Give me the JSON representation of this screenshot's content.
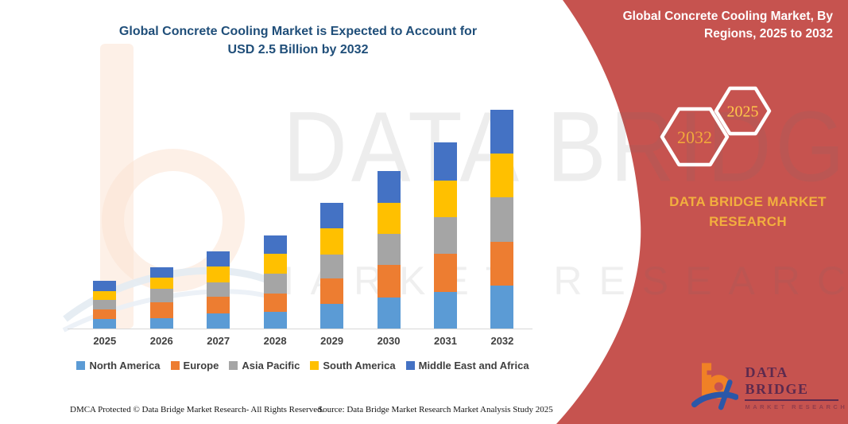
{
  "main_title": {
    "line1": "Global Concrete Cooling Market is Expected to Account for",
    "line2": "USD 2.5 Billion by 2032"
  },
  "panel": {
    "heading": "Global Concrete Cooling Market, By Regions, 2025 to 2032",
    "hex_back_year": "2032",
    "hex_front_year": "2025",
    "brand_line1": "DATA BRIDGE MARKET",
    "brand_line2": "RESEARCH",
    "background_color": "#C6534F",
    "accent_gold": "#F2AF3E"
  },
  "watermark": {
    "line1": "DATA BRIDGE",
    "line2": "MARKET RESEARCH"
  },
  "logo": {
    "name": "DATA BRIDGE",
    "subtitle": "MARKET RESEARCH"
  },
  "footer": {
    "dmca": "DMCA Protected © Data Bridge Market Research-  All Rights Reserved.",
    "source": "Source: Data Bridge Market Research  Market Analysis Study 2025"
  },
  "chart_data": {
    "type": "bar",
    "stacked": true,
    "title": "Global Concrete Cooling Market is Expected to Account for USD 2.5 Billion by 2032",
    "unit": "USD Billion",
    "categories": [
      "2025",
      "2026",
      "2027",
      "2028",
      "2029",
      "2030",
      "2031",
      "2032"
    ],
    "series": [
      {
        "name": "North America",
        "color": "#5B9BD5",
        "values": [
          0.11,
          0.12,
          0.17,
          0.19,
          0.28,
          0.35,
          0.42,
          0.49
        ]
      },
      {
        "name": "Europe",
        "color": "#ED7D31",
        "values": [
          0.11,
          0.18,
          0.19,
          0.21,
          0.29,
          0.37,
          0.44,
          0.5
        ]
      },
      {
        "name": "Asia Pacific",
        "color": "#A5A5A5",
        "values": [
          0.11,
          0.15,
          0.16,
          0.23,
          0.27,
          0.35,
          0.42,
          0.51
        ]
      },
      {
        "name": "South America",
        "color": "#FFC000",
        "values": [
          0.1,
          0.13,
          0.18,
          0.23,
          0.3,
          0.35,
          0.42,
          0.5
        ]
      },
      {
        "name": "Middle East and Africa",
        "color": "#4472C4",
        "values": [
          0.12,
          0.12,
          0.17,
          0.21,
          0.29,
          0.36,
          0.44,
          0.5
        ]
      }
    ],
    "totals_by_year": [
      0.55,
      0.7,
      0.87,
      1.07,
      1.43,
      1.78,
      2.14,
      2.5
    ],
    "xlabel": "",
    "ylabel": "",
    "y_axis_visible": false,
    "grid": false,
    "legend_position": "bottom"
  }
}
